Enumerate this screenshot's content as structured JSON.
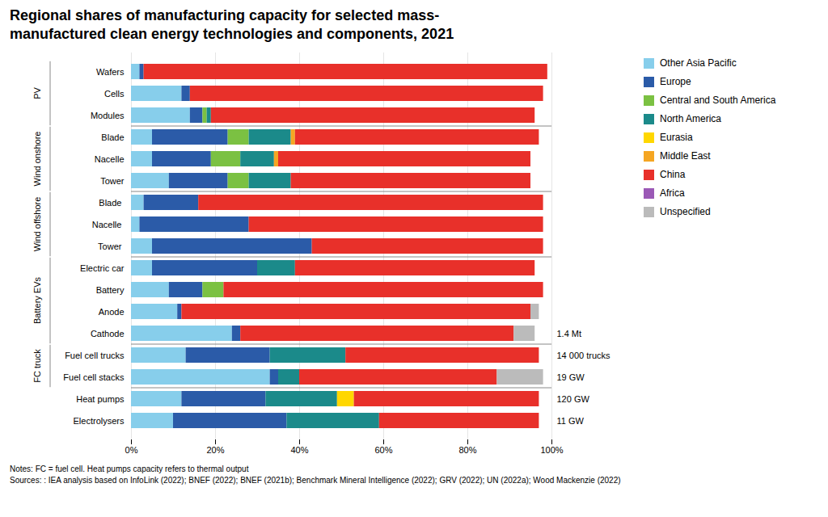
{
  "chart_data": {
    "type": "bar",
    "orientation": "horizontal",
    "stacked": true,
    "title": "Regional shares of manufacturing capacity for selected mass-\nmanufactured clean energy technologies and components, 2021",
    "categories": [
      "Wafers",
      "Cells",
      "Modules",
      "Blade",
      "Nacelle",
      "Tower",
      "Blade ",
      "Nacelle ",
      "Tower ",
      "Electric car",
      "Battery",
      "Anode",
      "Cathode",
      "Fuel cell trucks",
      "Fuel cell stacks",
      "Heat pumps",
      "Electrolysers"
    ],
    "series": [
      {
        "name": "Other Asia Pacific",
        "color": "#87CEEB",
        "values": [
          2,
          12,
          14,
          5,
          5,
          9,
          3,
          2,
          5,
          5,
          9,
          11,
          24,
          13,
          33,
          12,
          10
        ]
      },
      {
        "name": "Europe",
        "color": "#2B5BA8",
        "values": [
          1,
          2,
          3,
          18,
          14,
          14,
          13,
          26,
          38,
          25,
          8,
          1,
          2,
          20,
          2,
          20,
          27
        ]
      },
      {
        "name": "Central and South America",
        "color": "#7BC142",
        "values": [
          0,
          0,
          1,
          5,
          7,
          5,
          0,
          0,
          0,
          0,
          5,
          0,
          0,
          0,
          0,
          0,
          0
        ]
      },
      {
        "name": "North America",
        "color": "#1B8A8A",
        "values": [
          0,
          0,
          1,
          10,
          8,
          10,
          0,
          0,
          0,
          9,
          0,
          0,
          0,
          18,
          5,
          17,
          22
        ]
      },
      {
        "name": "Eurasia",
        "color": "#FFD700",
        "values": [
          0,
          0,
          0,
          0,
          0,
          0,
          0,
          0,
          0,
          0,
          0,
          0,
          0,
          0,
          0,
          4,
          0
        ]
      },
      {
        "name": "Middle East",
        "color": "#F5A623",
        "values": [
          0,
          0,
          0,
          1,
          1,
          0,
          0,
          0,
          0,
          0,
          0,
          0,
          0,
          0,
          0,
          0,
          0
        ]
      },
      {
        "name": "China",
        "color": "#E8302A",
        "values": [
          96,
          84,
          77,
          58,
          60,
          57,
          82,
          70,
          55,
          57,
          76,
          83,
          65,
          46,
          47,
          44,
          38
        ]
      },
      {
        "name": "Africa",
        "color": "#9B59B6",
        "values": [
          0,
          0,
          0,
          0,
          0,
          0,
          0,
          0,
          0,
          0,
          0,
          0,
          0,
          0,
          0,
          0,
          0
        ]
      },
      {
        "name": "Unspecified",
        "color": "#BBBBBB",
        "values": [
          0,
          0,
          0,
          0,
          0,
          0,
          0,
          0,
          0,
          0,
          0,
          2,
          5,
          0,
          11,
          0,
          0
        ]
      }
    ],
    "xlim": [
      0,
      100
    ],
    "xticks": [
      {
        "value": 0,
        "label": "0%"
      },
      {
        "value": 20,
        "label": "20%"
      },
      {
        "value": 40,
        "label": "40%"
      },
      {
        "value": 60,
        "label": "60%"
      },
      {
        "value": 80,
        "label": "80%"
      },
      {
        "value": 100,
        "label": "100%"
      }
    ],
    "grid": true,
    "legend": "right",
    "groups": [
      {
        "name": "PV",
        "categories": [
          "Wafers",
          "Cells",
          "Modules"
        ]
      },
      {
        "name": "Wind onshore",
        "categories": [
          "Blade",
          "Nacelle",
          "Tower"
        ]
      },
      {
        "name": "Wind offshore",
        "categories": [
          "Blade ",
          "Nacelle ",
          "Tower "
        ]
      },
      {
        "name": "Battery EVs",
        "categories": [
          "Electric car",
          "Battery",
          "Anode",
          "Cathode"
        ]
      },
      {
        "name": "FC truck",
        "categories": [
          "Fuel cell trucks",
          "Fuel cell stacks"
        ]
      }
    ],
    "annotations": [
      {
        "category": "Cathode",
        "text": "1.4 Mt"
      },
      {
        "category": "Fuel cell trucks",
        "text": "14 000 trucks"
      },
      {
        "category": "Fuel cell stacks",
        "text": "19 GW"
      },
      {
        "category": "Heat pumps",
        "text": "120 GW"
      },
      {
        "category": "Electrolysers",
        "text": "11 GW"
      }
    ],
    "footnotes": [
      "Notes: FC = fuel cell. Heat pumps capacity refers to thermal output",
      "Sources: : IEA analysis based on InfoLink (2022); BNEF (2022); BNEF (2021b); Benchmark Mineral Intelligence (2022); GRV (2022); UN (2022a); Wood Mackenzie (2022)"
    ]
  }
}
